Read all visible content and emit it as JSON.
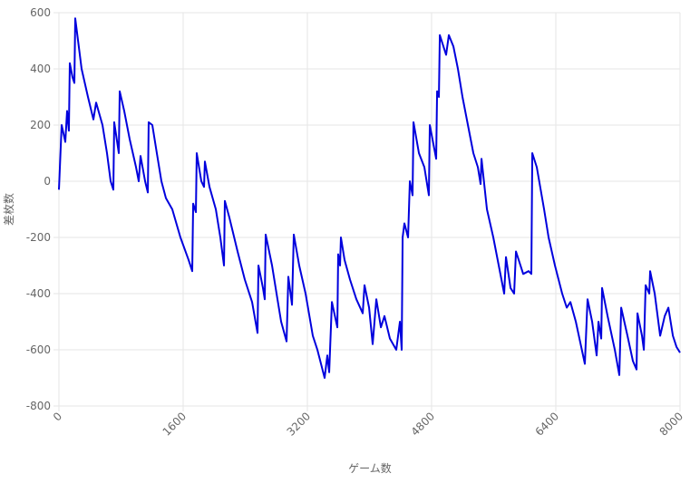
{
  "chart_data": {
    "type": "line",
    "x_label": "ゲーム数",
    "y_label": "差枚数",
    "x": [
      0,
      35,
      82,
      105,
      128,
      140,
      175,
      199,
      210,
      292,
      374,
      444,
      479,
      561,
      619,
      666,
      701,
      712,
      771,
      783,
      841,
      911,
      993,
      1028,
      1051,
      1110,
      1145,
      1156,
      1203,
      1261,
      1320,
      1378,
      1460,
      1565,
      1670,
      1717,
      1729,
      1764,
      1775,
      1834,
      1869,
      1880,
      1939,
      2021,
      2079,
      2126,
      2137,
      2196,
      2301,
      2394,
      2488,
      2558,
      2570,
      2628,
      2651,
      2663,
      2745,
      2803,
      2862,
      2932,
      2955,
      3002,
      3025,
      3095,
      3177,
      3270,
      3329,
      3422,
      3457,
      3481,
      3516,
      3586,
      3597,
      3621,
      3632,
      3679,
      3749,
      3831,
      3913,
      3936,
      3995,
      4041,
      4088,
      4147,
      4193,
      4263,
      4345,
      4392,
      4415,
      4427,
      4450,
      4497,
      4520,
      4555,
      4567,
      4637,
      4707,
      4765,
      4777,
      4859,
      4871,
      4894,
      4906,
      4987,
      5022,
      5081,
      5139,
      5198,
      5268,
      5338,
      5396,
      5431,
      5443,
      5513,
      5595,
      5665,
      5735,
      5758,
      5817,
      5863,
      5887,
      5980,
      6050,
      6085,
      6097,
      6155,
      6249,
      6307,
      6389,
      6482,
      6541,
      6588,
      6658,
      6774,
      6809,
      6868,
      6926,
      6950,
      6985,
      6996,
      7067,
      7160,
      7218,
      7242,
      7323,
      7393,
      7440,
      7452,
      7510,
      7534,
      7557,
      7604,
      7615,
      7674,
      7744,
      7803,
      7850,
      7908,
      7955,
      8000
    ],
    "series": [
      {
        "name": "差枚数",
        "color": "#0000dd",
        "values": [
          -30,
          200,
          140,
          250,
          180,
          420,
          370,
          350,
          580,
          400,
          300,
          220,
          280,
          200,
          100,
          0,
          -30,
          210,
          100,
          320,
          250,
          150,
          50,
          0,
          90,
          0,
          -40,
          210,
          200,
          100,
          0,
          -60,
          -100,
          -200,
          -280,
          -320,
          -80,
          -110,
          100,
          0,
          -20,
          70,
          -20,
          -100,
          -200,
          -300,
          -70,
          -130,
          -250,
          -350,
          -430,
          -540,
          -300,
          -380,
          -420,
          -190,
          -300,
          -400,
          -500,
          -570,
          -340,
          -440,
          -190,
          -300,
          -400,
          -550,
          -600,
          -700,
          -620,
          -680,
          -430,
          -520,
          -260,
          -300,
          -200,
          -280,
          -350,
          -420,
          -470,
          -370,
          -450,
          -580,
          -420,
          -520,
          -480,
          -560,
          -600,
          -500,
          -600,
          -200,
          -150,
          -200,
          0,
          -50,
          210,
          100,
          50,
          -50,
          200,
          80,
          320,
          300,
          520,
          450,
          520,
          480,
          400,
          300,
          200,
          100,
          50,
          -10,
          80,
          -100,
          -200,
          -300,
          -400,
          -270,
          -380,
          -400,
          -250,
          -330,
          -320,
          -330,
          100,
          50,
          -100,
          -200,
          -300,
          -400,
          -450,
          -430,
          -500,
          -650,
          -420,
          -500,
          -620,
          -500,
          -560,
          -380,
          -480,
          -600,
          -690,
          -450,
          -550,
          -640,
          -670,
          -470,
          -550,
          -600,
          -370,
          -400,
          -320,
          -400,
          -550,
          -480,
          -450,
          -550,
          -590,
          -610
        ]
      }
    ],
    "xlim": [
      0,
      8000
    ],
    "xticks": [
      0,
      1600,
      3200,
      4800,
      6400,
      8000
    ],
    "ylim": [
      -800,
      600
    ],
    "yticks": [
      -800,
      -600,
      -400,
      -200,
      0,
      200,
      400,
      600
    ],
    "grid": true
  }
}
